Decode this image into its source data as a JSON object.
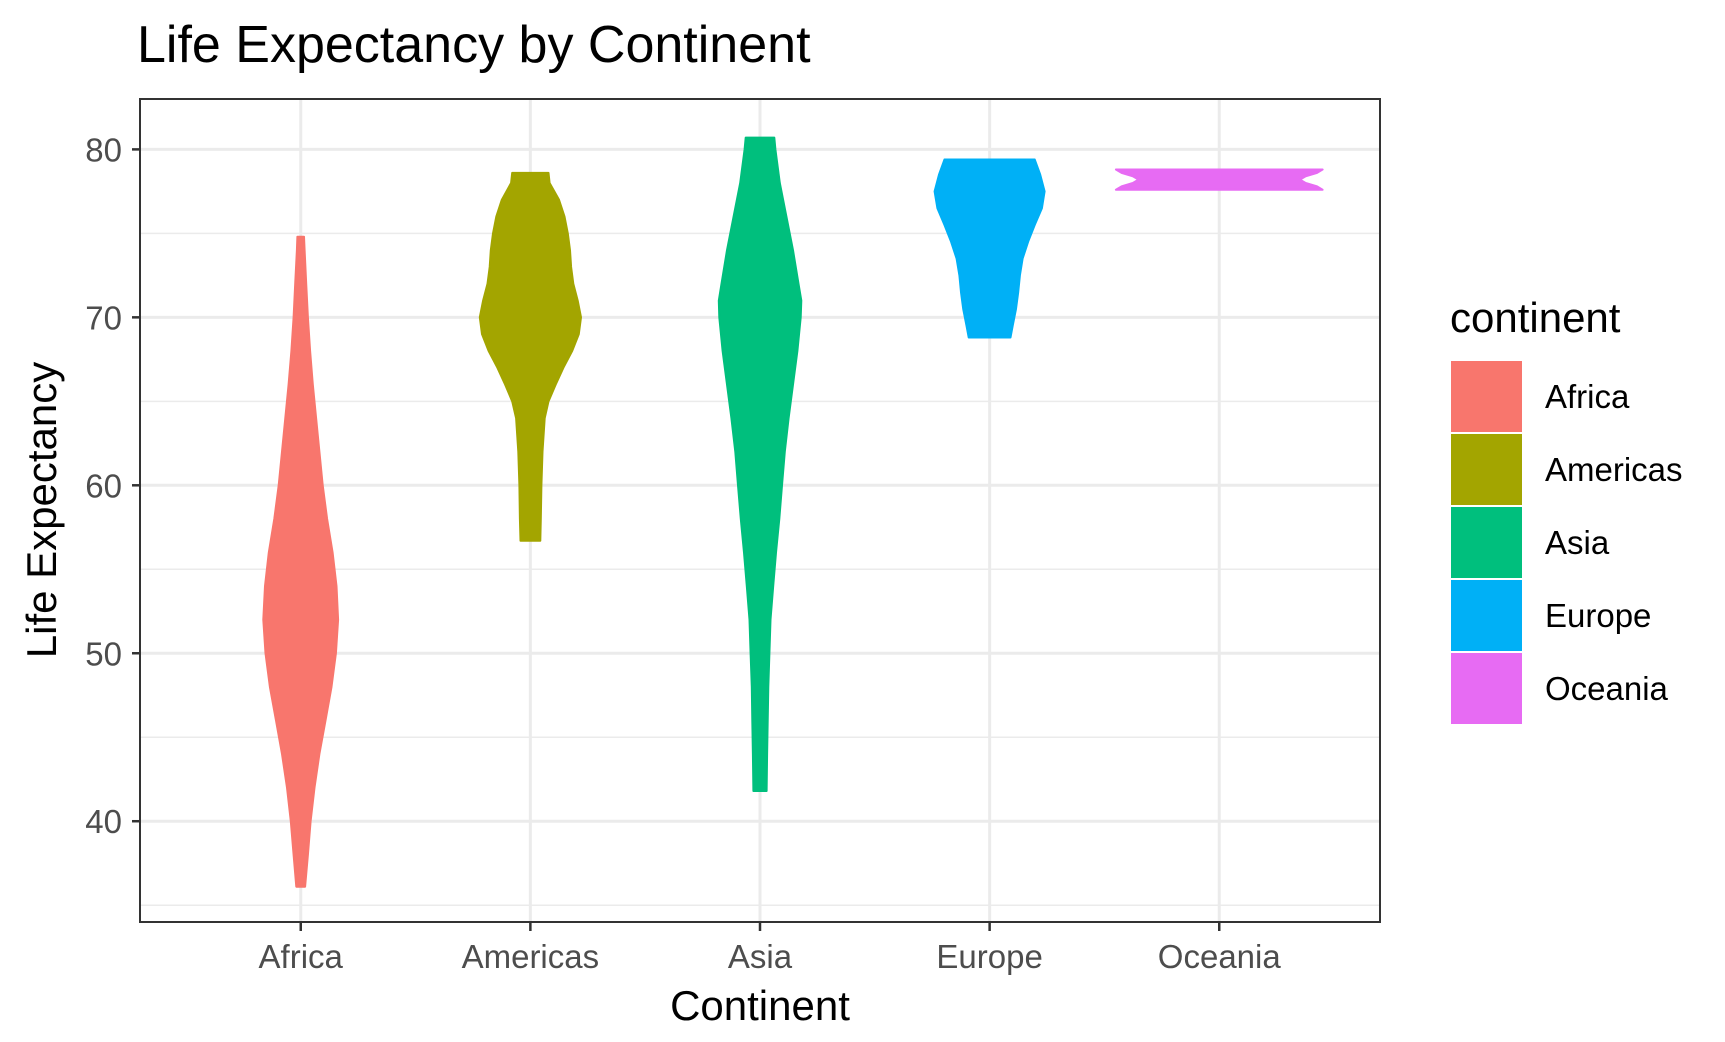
{
  "chart_data": {
    "type": "violin",
    "title": "Life Expectancy by Continent",
    "xlabel": "Continent",
    "ylabel": "Life Expectancy",
    "ylim": [
      34,
      83
    ],
    "yticks": [
      40,
      50,
      60,
      70,
      80
    ],
    "grid": true,
    "theme": "bw",
    "legend": {
      "title": "continent",
      "placement": "right"
    },
    "categories": [
      "Africa",
      "Americas",
      "Asia",
      "Europe",
      "Oceania"
    ],
    "series": [
      {
        "name": "Africa",
        "color": "#F8766D",
        "min": 36.1,
        "max": 74.8,
        "density": [
          [
            36.1,
            0.08
          ],
          [
            38,
            0.13
          ],
          [
            40,
            0.18
          ],
          [
            42,
            0.25
          ],
          [
            44,
            0.34
          ],
          [
            46,
            0.45
          ],
          [
            48,
            0.56
          ],
          [
            50,
            0.64
          ],
          [
            52,
            0.68
          ],
          [
            54,
            0.65
          ],
          [
            56,
            0.58
          ],
          [
            58,
            0.48
          ],
          [
            60,
            0.4
          ],
          [
            62,
            0.34
          ],
          [
            64,
            0.28
          ],
          [
            66,
            0.22
          ],
          [
            68,
            0.17
          ],
          [
            70,
            0.13
          ],
          [
            72,
            0.1
          ],
          [
            74,
            0.07
          ],
          [
            74.8,
            0.06
          ]
        ]
      },
      {
        "name": "Americas",
        "color": "#A3A500",
        "min": 56.7,
        "max": 78.6,
        "density": [
          [
            56.7,
            0.18
          ],
          [
            58,
            0.19
          ],
          [
            60,
            0.2
          ],
          [
            62,
            0.22
          ],
          [
            64,
            0.26
          ],
          [
            65,
            0.33
          ],
          [
            66,
            0.46
          ],
          [
            67,
            0.6
          ],
          [
            68,
            0.76
          ],
          [
            69,
            0.88
          ],
          [
            70,
            0.92
          ],
          [
            71,
            0.86
          ],
          [
            72,
            0.78
          ],
          [
            73,
            0.74
          ],
          [
            74,
            0.72
          ],
          [
            75,
            0.68
          ],
          [
            76,
            0.62
          ],
          [
            77,
            0.52
          ],
          [
            78,
            0.35
          ],
          [
            78.6,
            0.33
          ]
        ]
      },
      {
        "name": "Asia",
        "color": "#00BF7D",
        "min": 41.8,
        "max": 80.7,
        "density": [
          [
            41.8,
            0.12
          ],
          [
            44,
            0.13
          ],
          [
            46,
            0.14
          ],
          [
            48,
            0.15
          ],
          [
            50,
            0.17
          ],
          [
            52,
            0.19
          ],
          [
            54,
            0.24
          ],
          [
            56,
            0.29
          ],
          [
            58,
            0.35
          ],
          [
            60,
            0.4
          ],
          [
            62,
            0.45
          ],
          [
            64,
            0.52
          ],
          [
            66,
            0.6
          ],
          [
            68,
            0.68
          ],
          [
            70,
            0.74
          ],
          [
            71,
            0.75
          ],
          [
            72,
            0.7
          ],
          [
            74,
            0.6
          ],
          [
            76,
            0.48
          ],
          [
            78,
            0.36
          ],
          [
            80,
            0.28
          ],
          [
            80.7,
            0.26
          ]
        ]
      },
      {
        "name": "Europe",
        "color": "#00B0F6",
        "min": 68.8,
        "max": 79.4,
        "density": [
          [
            68.8,
            0.38
          ],
          [
            69.5,
            0.42
          ],
          [
            70.5,
            0.48
          ],
          [
            71.5,
            0.52
          ],
          [
            72.5,
            0.55
          ],
          [
            73.5,
            0.6
          ],
          [
            74.5,
            0.7
          ],
          [
            75.5,
            0.82
          ],
          [
            76.5,
            0.95
          ],
          [
            77.5,
            1.0
          ],
          [
            78.5,
            0.92
          ],
          [
            79.4,
            0.82
          ]
        ]
      },
      {
        "name": "Oceania",
        "color": "#E76BF3",
        "min": 77.6,
        "max": 78.8,
        "density": [
          [
            77.6,
            2.75
          ],
          [
            77.8,
            2.6
          ],
          [
            78.0,
            2.3
          ],
          [
            78.2,
            2.15
          ],
          [
            78.4,
            2.3
          ],
          [
            78.6,
            2.6
          ],
          [
            78.8,
            2.75
          ]
        ]
      }
    ]
  }
}
